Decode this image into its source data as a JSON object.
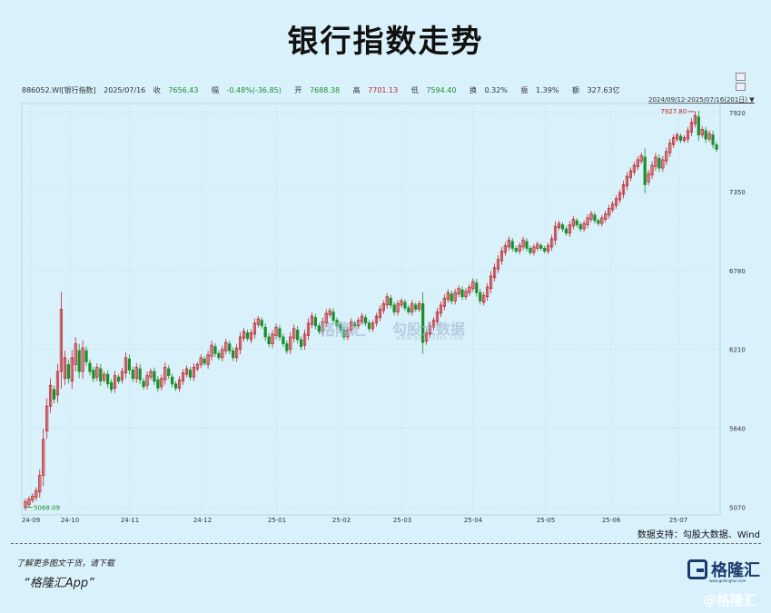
{
  "title": "银行指数走势",
  "quote": {
    "code": "886052.WI[银行指数]",
    "date": "2025/07/16",
    "close_label": "收",
    "close": "7656.43",
    "change_label": "幅",
    "change": "-0.48%(-36.85)",
    "open_label": "开",
    "open": "7688.38",
    "high_label": "高",
    "high": "7701.13",
    "low_label": "低",
    "low": "7594.40",
    "turnover_label": "换",
    "turnover": "0.32%",
    "amplitude_label": "振",
    "amplitude": "1.39%",
    "amount_label": "额",
    "amount": "327.63亿"
  },
  "range_label": "2024/09/12-2025/07/16(201日)",
  "source": "数据支持：勾股大数据、Wind",
  "footer": {
    "line1": "了解更多图文干货，请下载",
    "line2": "“格隆汇App”"
  },
  "logo": {
    "text": "格隆汇",
    "sub": "www.gelonghui.com"
  },
  "watermark": {
    "left": "格隆汇",
    "right": "勾股大数据",
    "url": "www.gogudata.com",
    "bottom": "@格隆汇"
  },
  "colors": {
    "up": "#c0262c",
    "down": "#1b8f2a",
    "background": "#d9f1fb"
  },
  "chart_data": {
    "type": "candlestick",
    "x_ticks": [
      "24-09",
      "24-10",
      "24-11",
      "24-12",
      "25-01",
      "25-02",
      "25-03",
      "25-04",
      "25-05",
      "25-06",
      "25-07"
    ],
    "y_ticks": [
      5070,
      5640,
      6210,
      6780,
      7350,
      7920
    ],
    "ylim": [
      5040,
      7960
    ],
    "annotations": [
      {
        "label": "5068.09",
        "value": 5068.09,
        "type": "min"
      },
      {
        "label": "7927.80",
        "value": 7927.8,
        "type": "max"
      }
    ],
    "points": [
      [
        0,
        5068,
        5110
      ],
      [
        1,
        5090,
        5128
      ],
      [
        2,
        5120,
        5150
      ],
      [
        3,
        5140,
        5190
      ],
      [
        4,
        5180,
        5300
      ],
      [
        5,
        5300,
        5560
      ],
      [
        6,
        5620,
        5800
      ],
      [
        7,
        5800,
        5950
      ],
      [
        8,
        5920,
        5850
      ],
      [
        9,
        5880,
        6050
      ],
      [
        10,
        6050,
        6500
      ],
      [
        11,
        6000,
        6150
      ],
      [
        12,
        6100,
        6000
      ],
      [
        13,
        5980,
        6150
      ],
      [
        14,
        6100,
        6250
      ],
      [
        15,
        6200,
        6050
      ],
      [
        16,
        6050,
        6220
      ],
      [
        17,
        6200,
        6120
      ],
      [
        18,
        6110,
        6050
      ],
      [
        19,
        6060,
        6000
      ],
      [
        20,
        6010,
        6080
      ],
      [
        21,
        6070,
        5980
      ],
      [
        22,
        5990,
        6030
      ],
      [
        23,
        6030,
        5960
      ],
      [
        24,
        5970,
        5920
      ],
      [
        25,
        5930,
        6020
      ],
      [
        26,
        6010,
        5980
      ],
      [
        27,
        5990,
        6050
      ],
      [
        28,
        6040,
        6150
      ],
      [
        29,
        6140,
        6060
      ],
      [
        30,
        6060,
        6000
      ],
      [
        31,
        6000,
        6080
      ],
      [
        32,
        6070,
        5990
      ],
      [
        33,
        5980,
        5940
      ],
      [
        34,
        5950,
        6020
      ],
      [
        35,
        6010,
        6050
      ],
      [
        36,
        6050,
        5980
      ],
      [
        37,
        5990,
        5930
      ],
      [
        38,
        5940,
        6000
      ],
      [
        39,
        5990,
        6080
      ],
      [
        40,
        6070,
        6020
      ],
      [
        41,
        6010,
        5960
      ],
      [
        42,
        5960,
        5930
      ],
      [
        43,
        5930,
        5990
      ],
      [
        44,
        5980,
        6040
      ],
      [
        45,
        6030,
        6070
      ],
      [
        46,
        6060,
        6010
      ],
      [
        47,
        6010,
        6080
      ],
      [
        48,
        6070,
        6100
      ],
      [
        49,
        6100,
        6150
      ],
      [
        50,
        6140,
        6110
      ],
      [
        51,
        6100,
        6170
      ],
      [
        52,
        6160,
        6240
      ],
      [
        53,
        6230,
        6180
      ],
      [
        54,
        6180,
        6150
      ],
      [
        55,
        6150,
        6210
      ],
      [
        56,
        6200,
        6260
      ],
      [
        57,
        6250,
        6200
      ],
      [
        58,
        6200,
        6150
      ],
      [
        59,
        6150,
        6220
      ],
      [
        60,
        6210,
        6300
      ],
      [
        61,
        6290,
        6340
      ],
      [
        62,
        6330,
        6290
      ],
      [
        63,
        6280,
        6330
      ],
      [
        64,
        6320,
        6400
      ],
      [
        65,
        6390,
        6430
      ],
      [
        66,
        6420,
        6380
      ],
      [
        67,
        6370,
        6300
      ],
      [
        68,
        6300,
        6250
      ],
      [
        69,
        6250,
        6320
      ],
      [
        70,
        6310,
        6370
      ],
      [
        71,
        6360,
        6300
      ],
      [
        72,
        6300,
        6250
      ],
      [
        73,
        6250,
        6200
      ],
      [
        74,
        6210,
        6300
      ],
      [
        75,
        6290,
        6360
      ],
      [
        76,
        6350,
        6280
      ],
      [
        77,
        6280,
        6230
      ],
      [
        78,
        6240,
        6320
      ],
      [
        79,
        6310,
        6400
      ],
      [
        80,
        6390,
        6450
      ],
      [
        81,
        6440,
        6380
      ],
      [
        82,
        6380,
        6340
      ],
      [
        83,
        6340,
        6410
      ],
      [
        84,
        6400,
        6470
      ],
      [
        85,
        6460,
        6490
      ],
      [
        86,
        6480,
        6420
      ],
      [
        87,
        6420,
        6380
      ],
      [
        88,
        6390,
        6350
      ],
      [
        89,
        6350,
        6300
      ],
      [
        90,
        6300,
        6350
      ],
      [
        91,
        6350,
        6410
      ],
      [
        92,
        6400,
        6380
      ],
      [
        93,
        6380,
        6420
      ],
      [
        94,
        6410,
        6450
      ],
      [
        95,
        6440,
        6400
      ],
      [
        96,
        6400,
        6360
      ],
      [
        97,
        6360,
        6400
      ],
      [
        98,
        6400,
        6450
      ],
      [
        99,
        6440,
        6500
      ],
      [
        100,
        6490,
        6540
      ],
      [
        101,
        6530,
        6590
      ],
      [
        102,
        6580,
        6530
      ],
      [
        103,
        6530,
        6480
      ],
      [
        104,
        6480,
        6540
      ],
      [
        105,
        6530,
        6560
      ],
      [
        106,
        6550,
        6510
      ],
      [
        107,
        6510,
        6480
      ],
      [
        108,
        6480,
        6540
      ],
      [
        109,
        6530,
        6500
      ],
      [
        110,
        6500,
        6540
      ],
      [
        111,
        6540,
        6260
      ],
      [
        112,
        6270,
        6330
      ],
      [
        113,
        6320,
        6380
      ],
      [
        114,
        6370,
        6420
      ],
      [
        115,
        6410,
        6480
      ],
      [
        116,
        6470,
        6530
      ],
      [
        117,
        6520,
        6580
      ],
      [
        118,
        6570,
        6620
      ],
      [
        119,
        6610,
        6560
      ],
      [
        120,
        6560,
        6620
      ],
      [
        121,
        6610,
        6650
      ],
      [
        122,
        6640,
        6590
      ],
      [
        123,
        6590,
        6630
      ],
      [
        124,
        6620,
        6660
      ],
      [
        125,
        6650,
        6700
      ],
      [
        126,
        6690,
        6620
      ],
      [
        127,
        6620,
        6560
      ],
      [
        128,
        6550,
        6600
      ],
      [
        129,
        6590,
        6660
      ],
      [
        130,
        6650,
        6740
      ],
      [
        131,
        6730,
        6800
      ],
      [
        132,
        6790,
        6860
      ],
      [
        133,
        6850,
        6920
      ],
      [
        134,
        6910,
        6960
      ],
      [
        135,
        6950,
        7000
      ],
      [
        136,
        6990,
        6940
      ],
      [
        137,
        6940,
        6920
      ],
      [
        138,
        6920,
        6960
      ],
      [
        139,
        6950,
        7000
      ],
      [
        140,
        6990,
        6940
      ],
      [
        141,
        6940,
        6910
      ],
      [
        142,
        6910,
        6950
      ],
      [
        143,
        6940,
        6970
      ],
      [
        144,
        6960,
        6940
      ],
      [
        145,
        6940,
        6920
      ],
      [
        146,
        6920,
        6960
      ],
      [
        147,
        6950,
        7010
      ],
      [
        148,
        7000,
        7100
      ],
      [
        149,
        7090,
        7120
      ],
      [
        150,
        7110,
        7080
      ],
      [
        151,
        7080,
        7050
      ],
      [
        152,
        7050,
        7110
      ],
      [
        153,
        7100,
        7150
      ],
      [
        154,
        7140,
        7110
      ],
      [
        155,
        7110,
        7080
      ],
      [
        156,
        7080,
        7120
      ],
      [
        157,
        7110,
        7160
      ],
      [
        158,
        7150,
        7190
      ],
      [
        159,
        7180,
        7140
      ],
      [
        160,
        7140,
        7120
      ],
      [
        161,
        7120,
        7160
      ],
      [
        162,
        7150,
        7190
      ],
      [
        163,
        7180,
        7230
      ],
      [
        164,
        7220,
        7260
      ],
      [
        165,
        7250,
        7300
      ],
      [
        166,
        7290,
        7340
      ],
      [
        167,
        7330,
        7400
      ],
      [
        168,
        7390,
        7460
      ],
      [
        169,
        7450,
        7500
      ],
      [
        170,
        7490,
        7540
      ],
      [
        171,
        7530,
        7580
      ],
      [
        172,
        7570,
        7610
      ],
      [
        173,
        7600,
        7400
      ],
      [
        174,
        7420,
        7480
      ],
      [
        175,
        7470,
        7540
      ],
      [
        176,
        7530,
        7600
      ],
      [
        177,
        7590,
        7520
      ],
      [
        178,
        7520,
        7580
      ],
      [
        179,
        7570,
        7640
      ],
      [
        180,
        7630,
        7700
      ],
      [
        181,
        7690,
        7740
      ],
      [
        182,
        7730,
        7760
      ],
      [
        183,
        7750,
        7720
      ],
      [
        184,
        7720,
        7740
      ],
      [
        185,
        7730,
        7790
      ],
      [
        186,
        7780,
        7850
      ],
      [
        187,
        7840,
        7900
      ],
      [
        188,
        7890,
        7760
      ],
      [
        189,
        7760,
        7800
      ],
      [
        190,
        7790,
        7730
      ],
      [
        191,
        7730,
        7770
      ],
      [
        192,
        7760,
        7690
      ],
      [
        193,
        7688,
        7656
      ]
    ]
  }
}
